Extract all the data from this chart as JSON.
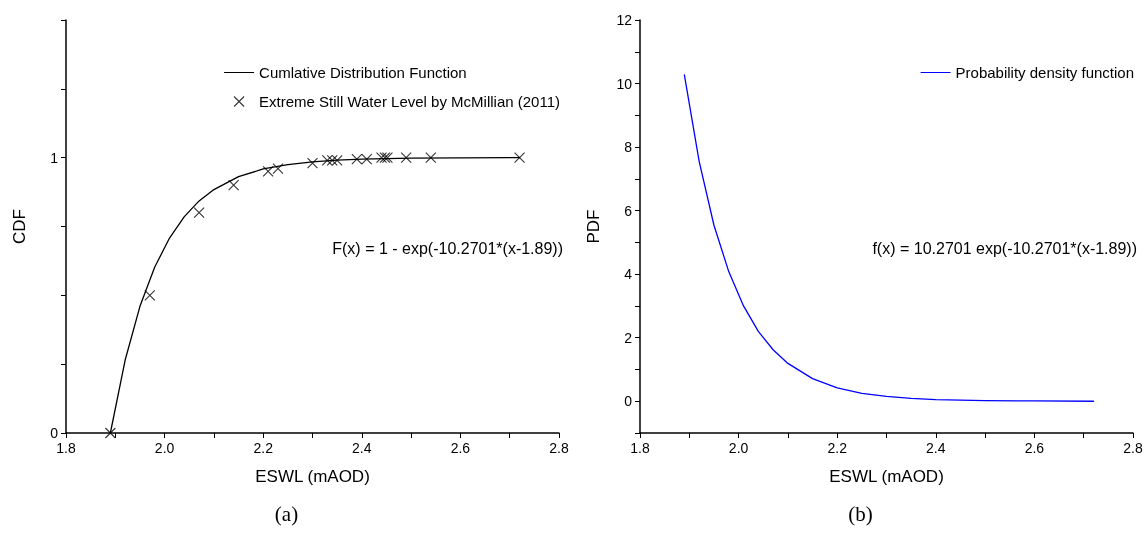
{
  "chart_data": [
    {
      "type": "line",
      "xlabel": "ESWL (mAOD)",
      "ylabel": "CDF",
      "xlim": [
        1.8,
        2.8
      ],
      "ylim": [
        0,
        1.5
      ],
      "xticks": [
        1.8,
        {
          "value": 1.9,
          "label": null
        },
        {
          "value": 2.0,
          "label": "2.0"
        },
        {
          "value": 2.1,
          "label": null
        },
        2.2,
        {
          "value": 2.3,
          "label": null
        },
        2.4,
        {
          "value": 2.5,
          "label": null
        },
        2.6,
        {
          "value": 2.7,
          "label": null
        },
        2.8
      ],
      "yticks": [
        0,
        {
          "value": 0.25,
          "label": null
        },
        {
          "value": 0.5,
          "label": null
        },
        {
          "value": 0.75,
          "label": null
        },
        1,
        {
          "value": 1.25,
          "label": null
        },
        {
          "value": 1.5,
          "label": null
        }
      ],
      "grid": false,
      "legend": "top right",
      "annotations": [
        "F(x) = 1 - exp(-10.2701*(x-1.89))",
        "(a)"
      ],
      "series": [
        {
          "name": "Cumlative Distribution Function",
          "color": "#000000",
          "marker": "none",
          "line_style": "solid",
          "x": [
            1.89,
            1.92,
            1.95,
            1.98,
            2.01,
            2.04,
            2.07,
            2.1,
            2.15,
            2.2,
            2.25,
            2.3,
            2.35,
            2.4,
            2.5,
            2.6,
            2.72
          ],
          "values": [
            0,
            0.265,
            0.46,
            0.603,
            0.708,
            0.786,
            0.843,
            0.884,
            0.931,
            0.959,
            0.975,
            0.985,
            0.991,
            0.995,
            0.998,
            0.999,
            1.0
          ]
        },
        {
          "name": "Extreme Still Water Level by McMillian (2011)",
          "type": "scatter",
          "color": "#000000",
          "marker": "cross",
          "x": [
            1.89,
            1.97,
            2.07,
            2.14,
            2.21,
            2.23,
            2.3,
            2.33,
            2.34,
            2.35,
            2.39,
            2.41,
            2.44,
            2.447,
            2.452,
            2.49,
            2.54,
            2.72
          ],
          "values": [
            0,
            0.5,
            0.8,
            0.9,
            0.95,
            0.96,
            0.98,
            0.99,
            0.99,
            0.99,
            0.995,
            0.995,
            1.0,
            1.0,
            1.0,
            1.0,
            1.0,
            1.0
          ]
        }
      ]
    },
    {
      "type": "line",
      "xlabel": "ESWL (mAOD)",
      "ylabel": "PDF",
      "xlim": [
        1.8,
        2.8
      ],
      "ylim": [
        -1,
        12
      ],
      "xticks": [
        1.8,
        {
          "value": 1.9,
          "label": null
        },
        {
          "value": 2.0,
          "label": "2.0"
        },
        {
          "value": 2.1,
          "label": null
        },
        2.2,
        {
          "value": 2.3,
          "label": null
        },
        2.4,
        {
          "value": 2.5,
          "label": null
        },
        2.6,
        {
          "value": 2.7,
          "label": null
        },
        2.8
      ],
      "yticks": [
        {
          "value": -1,
          "label": null
        },
        0,
        {
          "value": 1,
          "label": null
        },
        2,
        {
          "value": 3,
          "label": null
        },
        4,
        {
          "value": 5,
          "label": null
        },
        6,
        {
          "value": 7,
          "label": null
        },
        8,
        {
          "value": 9,
          "label": null
        },
        10,
        {
          "value": 11,
          "label": null
        },
        12
      ],
      "grid": false,
      "legend": "top right",
      "annotations": [
        "f(x) = 10.2701 exp(-10.2701*(x-1.89))",
        "(b)"
      ],
      "series": [
        {
          "name": "Probability density function",
          "color": "#0000ff",
          "marker": "none",
          "line_style": "solid",
          "x": [
            1.89,
            1.92,
            1.95,
            1.98,
            2.01,
            2.04,
            2.07,
            2.1,
            2.15,
            2.2,
            2.25,
            2.3,
            2.35,
            2.4,
            2.5,
            2.6,
            2.72
          ],
          "values": [
            10.27,
            7.55,
            5.54,
            4.08,
            3.0,
            2.2,
            1.62,
            1.19,
            0.71,
            0.42,
            0.25,
            0.15,
            0.09,
            0.05,
            0.02,
            0.01,
            0.0
          ]
        }
      ]
    }
  ]
}
